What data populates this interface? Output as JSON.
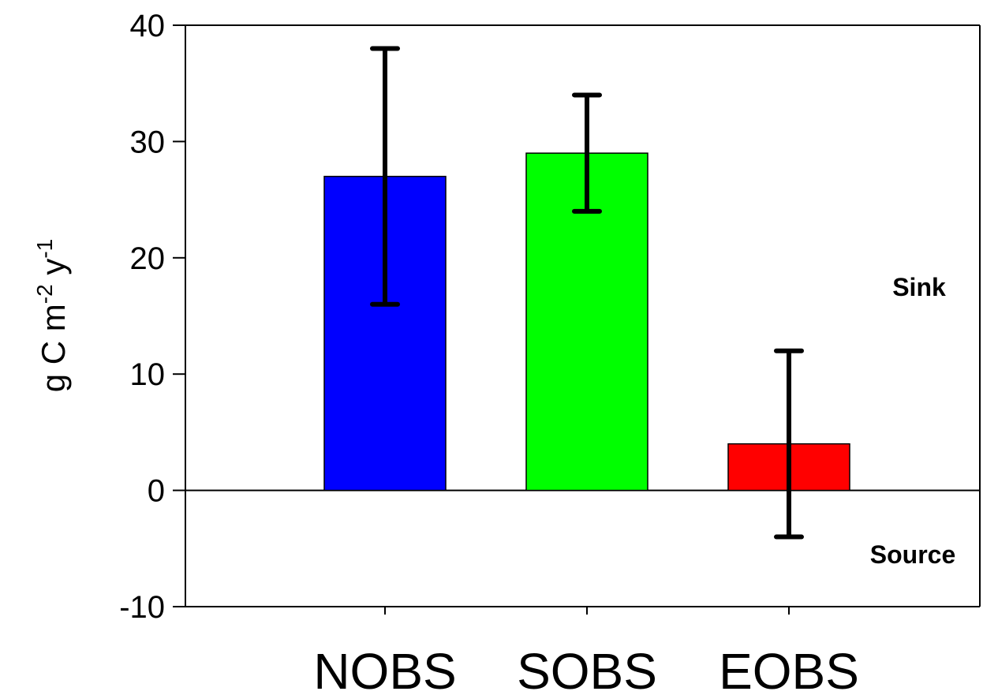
{
  "chart_data": {
    "type": "bar",
    "title": "",
    "xlabel": "",
    "ylabel": {
      "main": "g C m",
      "sup1": "-2",
      "mid": " y",
      "sup2": "-1"
    },
    "categories": [
      "NOBS",
      "SOBS",
      "EOBS"
    ],
    "values": [
      27,
      29,
      4
    ],
    "error_low": [
      16,
      24,
      -4
    ],
    "error_high": [
      38,
      34,
      12
    ],
    "colors": [
      "#0000ff",
      "#00ff00",
      "#ff0000"
    ],
    "ylim": [
      -10,
      40
    ],
    "yticks": [
      -10,
      0,
      10,
      20,
      30,
      40
    ],
    "ytick_labels": [
      "-10",
      "0",
      "10",
      "20",
      "30",
      "40"
    ],
    "zero_line": true,
    "grid": false,
    "annotations": {
      "sink": "Sink",
      "source": "Source"
    }
  }
}
